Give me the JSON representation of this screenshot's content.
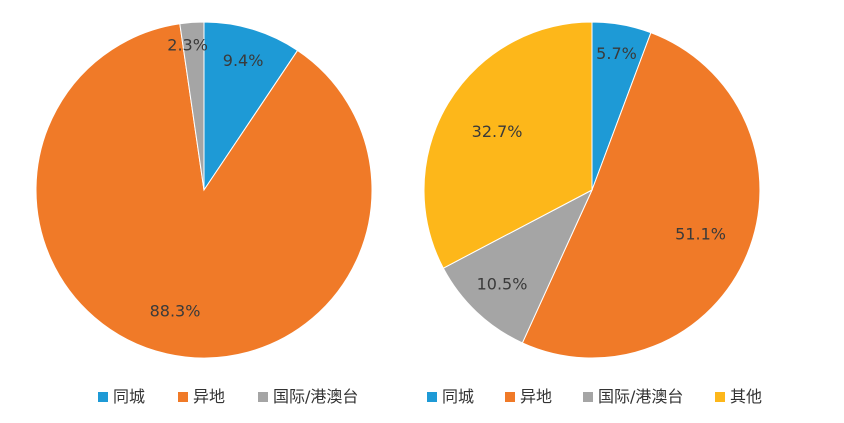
{
  "chart_data": [
    {
      "type": "pie",
      "title": "",
      "start_angle_deg": 0,
      "direction": "clockwise",
      "slices": [
        {
          "name": "同城",
          "value": 9.4,
          "label": "9.4%",
          "color": "#1e9ad6"
        },
        {
          "name": "异地",
          "value": 88.3,
          "label": "88.3%",
          "color": "#f07a28"
        },
        {
          "name": "国际/港澳台",
          "value": 2.3,
          "label": "2.3%",
          "color": "#a5a5a5"
        }
      ],
      "legend": {
        "placement": "bottom",
        "entries": [
          "同城",
          "异地",
          "国际/港澳台"
        ]
      }
    },
    {
      "type": "pie",
      "title": "",
      "start_angle_deg": 0,
      "direction": "clockwise",
      "slices": [
        {
          "name": "同城",
          "value": 5.7,
          "label": "5.7%",
          "color": "#1e9ad6"
        },
        {
          "name": "异地",
          "value": 51.1,
          "label": "51.1%",
          "color": "#f07a28"
        },
        {
          "name": "国际/港澳台",
          "value": 10.5,
          "label": "10.5%",
          "color": "#a5a5a5"
        },
        {
          "name": "其他",
          "value": 32.7,
          "label": "32.7%",
          "color": "#fdb71a"
        }
      ],
      "legend": {
        "placement": "bottom",
        "entries": [
          "同城",
          "异地",
          "国际/港澳台",
          "其他"
        ]
      }
    }
  ]
}
